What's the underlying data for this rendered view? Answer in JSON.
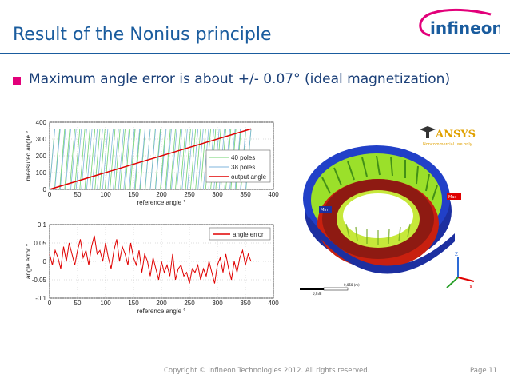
{
  "slide": {
    "title": "Result of the Nonius principle",
    "bullet": "Maximum angle error is about +/- 0.07° (ideal magnetization)",
    "footer": "Copyright © Infineon Technologies 2012. All rights reserved.",
    "page": "Page 11",
    "logo_text": "infineon"
  },
  "colors": {
    "title": "#1a5c9e",
    "bullet": "#e2007a",
    "green": "#6fd36f",
    "blue": "#7fb5dc",
    "red": "#e00000"
  },
  "simulation": {
    "brand": "ANSYS",
    "license": "Noncommercial use only",
    "scale_top": "0,050 (m)",
    "scale_bottom": "0,038",
    "tag_max": "Max",
    "tag_min": "Min",
    "axis_z": "Z",
    "axis_x": "X"
  },
  "chart_data": [
    {
      "type": "line",
      "xlabel": "reference angle °",
      "ylabel": "measured angle °",
      "xlim": [
        0,
        400
      ],
      "ylim": [
        0,
        400
      ],
      "xticks": [
        0,
        50,
        100,
        150,
        200,
        250,
        300,
        350,
        400
      ],
      "yticks": [
        0,
        100,
        200,
        300,
        400
      ],
      "legend": "inside-right",
      "series": [
        {
          "name": "40 poles",
          "sawtooth_period_deg": 9,
          "y_range": [
            0,
            360
          ]
        },
        {
          "name": "38 poles",
          "sawtooth_period_deg": 9.474,
          "y_range": [
            0,
            360
          ]
        },
        {
          "name": "output angle",
          "x": [
            0,
            360
          ],
          "y": [
            0,
            360
          ]
        }
      ]
    },
    {
      "type": "line",
      "xlabel": "reference angle °",
      "ylabel": "angle error °",
      "xlim": [
        0,
        400
      ],
      "ylim": [
        -0.1,
        0.1
      ],
      "xticks": [
        0,
        50,
        100,
        150,
        200,
        250,
        300,
        350,
        400
      ],
      "yticks": [
        -0.1,
        -0.05,
        0,
        0.05,
        0.1
      ],
      "legend": "top-right",
      "series": [
        {
          "name": "angle error",
          "x": [
            0,
            5,
            10,
            15,
            20,
            25,
            30,
            35,
            40,
            45,
            50,
            55,
            60,
            65,
            70,
            75,
            80,
            85,
            90,
            95,
            100,
            105,
            110,
            115,
            120,
            125,
            130,
            135,
            140,
            145,
            150,
            155,
            160,
            165,
            170,
            175,
            180,
            185,
            190,
            195,
            200,
            205,
            210,
            215,
            220,
            225,
            230,
            235,
            240,
            245,
            250,
            255,
            260,
            265,
            270,
            275,
            280,
            285,
            290,
            295,
            300,
            305,
            310,
            315,
            320,
            325,
            330,
            335,
            340,
            345,
            350,
            355,
            360
          ],
          "y": [
            0.02,
            -0.01,
            0.03,
            0.01,
            -0.02,
            0.04,
            0.0,
            0.05,
            0.02,
            -0.01,
            0.03,
            0.06,
            0.01,
            0.03,
            -0.01,
            0.04,
            0.07,
            0.02,
            0.03,
            0.0,
            0.05,
            0.01,
            -0.02,
            0.03,
            0.06,
            0.0,
            0.04,
            0.02,
            -0.01,
            0.05,
            0.01,
            -0.01,
            0.03,
            -0.03,
            0.02,
            0.0,
            -0.04,
            0.01,
            -0.02,
            -0.05,
            0.0,
            -0.03,
            -0.01,
            -0.04,
            0.02,
            -0.05,
            -0.02,
            -0.01,
            -0.04,
            -0.03,
            -0.06,
            -0.02,
            -0.03,
            -0.01,
            -0.05,
            -0.02,
            -0.04,
            0.0,
            -0.03,
            -0.06,
            -0.01,
            0.01,
            -0.03,
            0.02,
            -0.02,
            -0.05,
            0.0,
            -0.03,
            0.01,
            0.03,
            -0.01,
            0.02,
            0.0
          ]
        }
      ]
    }
  ]
}
